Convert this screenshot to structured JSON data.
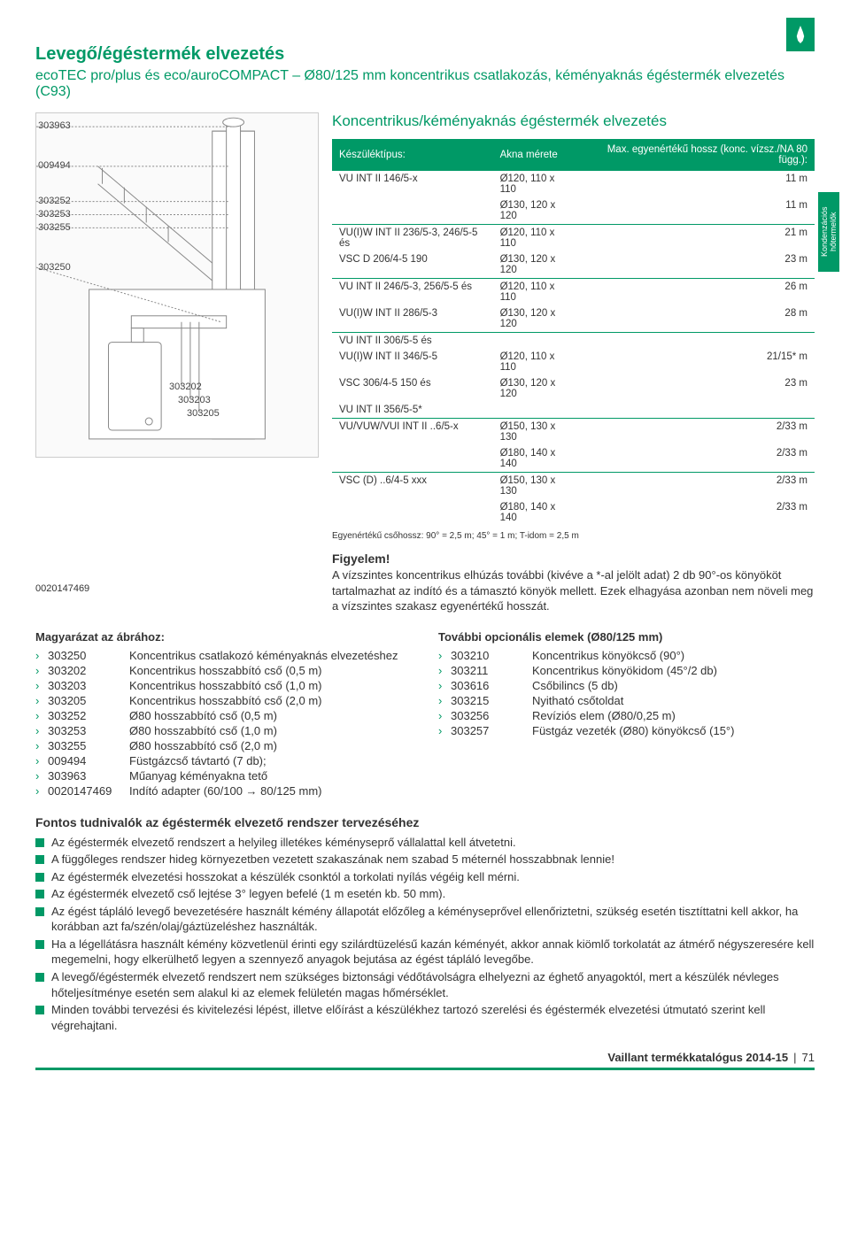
{
  "brand_color": "#009966",
  "top_icon": "flame-icon",
  "title": "Levegő/égéstermék elvezetés",
  "subtitle": "ecoTEC pro/plus és eco/auroCOMPACT – Ø80/125 mm koncentrikus csatlakozás, kéményaknás égéstermék elvezetés (C93)",
  "section_header": "Koncentrikus/kéményaknás égéstermék elvezetés",
  "side_tab": "Kondenzációs hőtermelők",
  "diagram_labels": [
    "303963",
    "009494",
    "303252",
    "303253",
    "303255",
    "303250"
  ],
  "diagram_right_labels": [
    "303202",
    "303203",
    "303205"
  ],
  "table": {
    "header": [
      "Készüléktípus:",
      "Akna mérete",
      "Max. egyenértékű hossz (konc. vízsz./NA 80 függ.):"
    ],
    "rows": [
      {
        "c1": "VU INT II 146/5-x",
        "c2": "Ø120, 110 x 110",
        "c3": "11 m"
      },
      {
        "c1": "",
        "c2": "Ø130, 120 x 120",
        "c3": "11 m",
        "sep": true
      },
      {
        "c1": "VU(I)W INT II 236/5-3, 246/5-5 és",
        "c2": "Ø120, 110 x 110",
        "c3": "21 m"
      },
      {
        "c1": "VSC D 206/4-5 190",
        "c2": "Ø130, 120 x 120",
        "c3": "23 m",
        "sep": true
      },
      {
        "c1": "VU INT II 246/5-3, 256/5-5 és",
        "c2": "Ø120, 110 x 110",
        "c3": "26 m"
      },
      {
        "c1": "VU(I)W INT II 286/5-3",
        "c2": "Ø130, 120 x 120",
        "c3": "28 m",
        "sep": true
      },
      {
        "c1": "VU INT II 306/5-5 és",
        "c2": "",
        "c3": ""
      },
      {
        "c1": "VU(I)W INT II 346/5-5",
        "c2": "Ø120, 110 x 110",
        "c3": "21/15* m"
      },
      {
        "c1": "VSC 306/4-5 150 és",
        "c2": "Ø130, 120 x 120",
        "c3": "23 m"
      },
      {
        "c1": "VU INT II 356/5-5*",
        "c2": "",
        "c3": "",
        "sep": true
      },
      {
        "c1": "VU/VUW/VUI INT II ..6/5-x",
        "c2": "Ø150, 130 x 130",
        "c3": "2/33 m"
      },
      {
        "c1": "",
        "c2": "Ø180, 140 x 140",
        "c3": "2/33 m",
        "sep": true
      },
      {
        "c1": "VSC (D) ..6/4-5 xxx",
        "c2": "Ø150, 130 x 130",
        "c3": "2/33 m"
      },
      {
        "c1": "",
        "c2": "Ø180, 140 x 140",
        "c3": "2/33 m"
      }
    ],
    "note": "Egyenértékű csőhossz: 90° = 2,5 m; 45° = 1 m; T-idom = 2,5 m"
  },
  "attention": {
    "label": "0020147469",
    "title": "Figyelem!",
    "body": "A vízszintes koncentrikus elhúzás további (kivéve a *-al jelölt adat) 2 db 90°-os könyököt tartalmazhat az indító és a támasztó könyök mellett. Ezek elhagyása azonban nem növeli meg a vízszintes szakasz egyenértékű hosszát."
  },
  "legend_left": {
    "title": "Magyarázat az ábrához:",
    "items": [
      {
        "code": "303250",
        "text": "Koncentrikus csatlakozó kéményaknás elvezetéshez"
      },
      {
        "code": "303202",
        "text": "Koncentrikus hosszabbító cső (0,5 m)"
      },
      {
        "code": "303203",
        "text": "Koncentrikus hosszabbító cső (1,0 m)"
      },
      {
        "code": "303205",
        "text": "Koncentrikus hosszabbító cső (2,0 m)"
      },
      {
        "code": "303252",
        "text": "Ø80 hosszabbító cső (0,5 m)"
      },
      {
        "code": "303253",
        "text": "Ø80 hosszabbító cső (1,0 m)"
      },
      {
        "code": "303255",
        "text": "Ø80 hosszabbító cső (2,0 m)"
      },
      {
        "code": "009494",
        "text": "Füstgázcső távtartó (7 db);"
      },
      {
        "code": "303963",
        "text": "Műanyag kéményakna tető"
      },
      {
        "code": "0020147469",
        "text": "Indító adapter (60/100 → 80/125 mm)"
      }
    ]
  },
  "legend_right": {
    "title": "További opcionális elemek (Ø80/125 mm)",
    "items": [
      {
        "code": "303210",
        "text": "Koncentrikus könyökcső (90°)"
      },
      {
        "code": "303211",
        "text": "Koncentrikus könyökidom (45°/2 db)"
      },
      {
        "code": "303616",
        "text": "Csőbilincs (5 db)"
      },
      {
        "code": "303215",
        "text": "Nyitható csőtoldat"
      },
      {
        "code": "303256",
        "text": "Revíziós elem (Ø80/0,25 m)"
      },
      {
        "code": "303257",
        "text": "Füstgáz vezeték (Ø80) könyökcső (15°)"
      }
    ]
  },
  "important": {
    "title": "Fontos tudnivalók az égéstermék elvezető rendszer tervezéséhez",
    "bullets": [
      "Az égéstermék elvezető rendszert a helyileg illetékes kéményseprő vállalattal kell átvetetni.",
      "A függőleges rendszer hideg környezetben vezetett szakaszának nem szabad 5 méternél hosszabbnak lennie!",
      "Az égéstermék elvezetési hosszokat a készülék csonktól a torkolati nyílás végéig kell mérni.",
      "Az égéstermék elvezető cső lejtése 3° legyen befelé (1 m esetén kb. 50 mm).",
      "Az égést tápláló levegő bevezetésére használt kémény állapotát előzőleg a kéményseprővel ellenőriztetni, szükség esetén tisztíttatni kell akkor, ha korábban azt fa/szén/olaj/gáztüzeléshez használták.",
      "Ha a légellátásra használt kémény közvetlenül érinti egy szilárdtüzelésű kazán kéményét, akkor annak kiömlő torkolatát az átmérő négyszeresére kell megemelni, hogy elkerülhető legyen a szennyező anyagok bejutása az égést tápláló levegőbe.",
      "A levegő/égéstermék elvezető rendszert nem szükséges biztonsági védőtávolságra elhelyezni az éghető anyagoktól, mert a készülék névleges hőteljesítménye esetén sem alakul ki az elemek felületén magas hőmérséklet.",
      "Minden további tervezési és kivitelezési lépést, illetve előírást a készülékhez tartozó szerelési és égéstermék elvezetési útmutató szerint kell végrehajtani."
    ]
  },
  "footer": {
    "text": "Vaillant termékkatalógus 2014-15",
    "page": "71"
  }
}
